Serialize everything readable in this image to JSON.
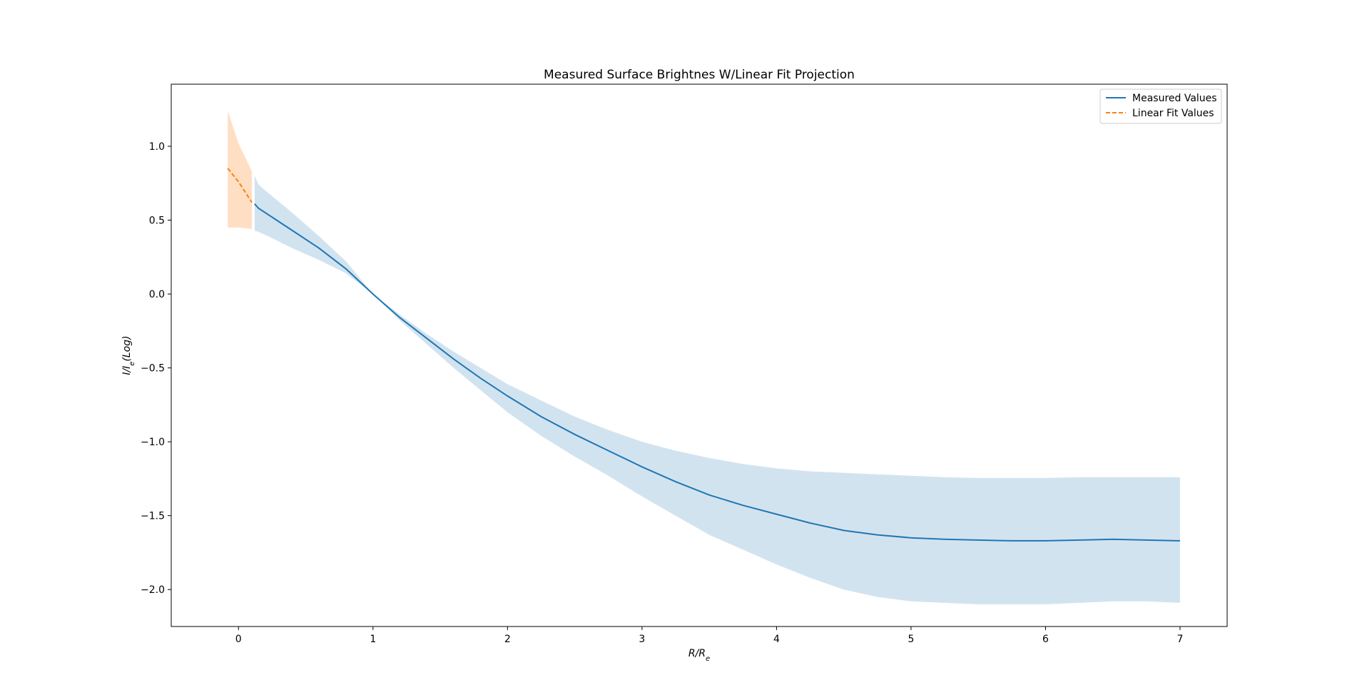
{
  "chart_data": {
    "type": "line",
    "title": "Measured Surface Brightnes W/Linear Fit Projection",
    "xlabel": "R/R_e",
    "ylabel": "I/I_e(Log)",
    "xlim": [
      -0.5,
      7.35
    ],
    "ylim": [
      -2.25,
      1.42
    ],
    "x_ticks": [
      0,
      1,
      2,
      3,
      4,
      5,
      6,
      7
    ],
    "x_tick_labels": [
      "0",
      "1",
      "2",
      "3",
      "4",
      "5",
      "6",
      "7"
    ],
    "y_ticks": [
      1.0,
      0.5,
      0.0,
      -0.5,
      -1.0,
      -1.5,
      -2.0
    ],
    "y_tick_labels": [
      "1.0",
      "0.5",
      "0.0",
      "−0.5",
      "−1.0",
      "−1.5",
      "−2.0"
    ],
    "legend_position": "top-right",
    "series": [
      {
        "name": "Measured Values",
        "color": "#1f77b4",
        "style": "solid",
        "x": [
          0.12,
          0.15,
          0.2,
          0.4,
          0.6,
          0.8,
          1.0,
          1.2,
          1.4,
          1.6,
          1.8,
          2.0,
          2.25,
          2.5,
          2.75,
          3.0,
          3.25,
          3.5,
          3.75,
          4.0,
          4.25,
          4.5,
          4.75,
          5.0,
          5.25,
          5.5,
          5.75,
          6.0,
          6.25,
          6.5,
          6.75,
          7.0
        ],
        "y": [
          0.61,
          0.58,
          0.55,
          0.43,
          0.31,
          0.17,
          0.0,
          -0.16,
          -0.3,
          -0.44,
          -0.57,
          -0.69,
          -0.83,
          -0.95,
          -1.06,
          -1.17,
          -1.27,
          -1.36,
          -1.43,
          -1.49,
          -1.55,
          -1.6,
          -1.63,
          -1.65,
          -1.66,
          -1.665,
          -1.67,
          -1.67,
          -1.665,
          -1.66,
          -1.665,
          -1.67
        ],
        "band_upper": [
          0.8,
          0.74,
          0.7,
          0.55,
          0.39,
          0.22,
          0.0,
          -0.14,
          -0.27,
          -0.39,
          -0.5,
          -0.61,
          -0.72,
          -0.83,
          -0.92,
          -1.0,
          -1.06,
          -1.11,
          -1.15,
          -1.18,
          -1.2,
          -1.21,
          -1.22,
          -1.23,
          -1.24,
          -1.245,
          -1.245,
          -1.245,
          -1.24,
          -1.24,
          -1.24,
          -1.24
        ],
        "band_lower": [
          0.43,
          0.42,
          0.4,
          0.31,
          0.23,
          0.14,
          0.0,
          -0.18,
          -0.34,
          -0.5,
          -0.65,
          -0.8,
          -0.96,
          -1.1,
          -1.23,
          -1.37,
          -1.5,
          -1.63,
          -1.73,
          -1.83,
          -1.92,
          -2.0,
          -2.05,
          -2.08,
          -2.09,
          -2.1,
          -2.1,
          -2.1,
          -2.09,
          -2.08,
          -2.08,
          -2.09
        ]
      },
      {
        "name": "Linear Fit Values",
        "color": "#ff7f0e",
        "style": "dashed",
        "x": [
          -0.08,
          0.0,
          0.1
        ],
        "y": [
          0.85,
          0.76,
          0.62
        ],
        "band_upper": [
          1.24,
          1.02,
          0.83
        ],
        "band_lower": [
          0.45,
          0.45,
          0.44
        ]
      }
    ]
  }
}
